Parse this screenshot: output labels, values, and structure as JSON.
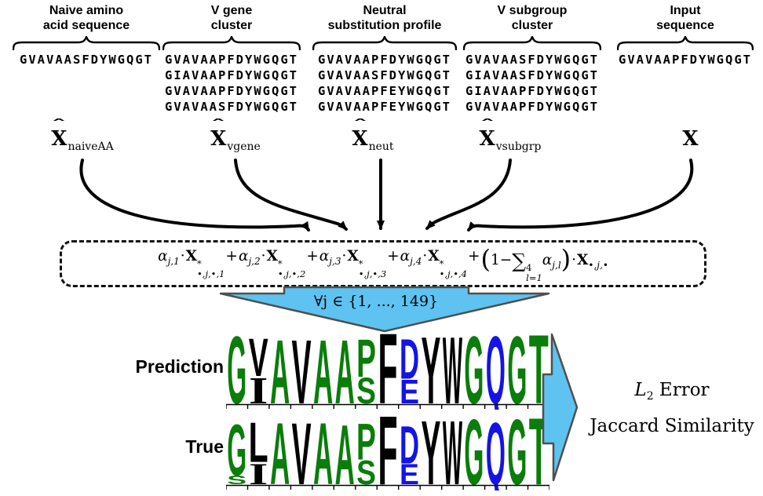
{
  "columns": [
    {
      "header_line1": "Naive amino",
      "header_line2": "acid sequence",
      "variable": {
        "symbol": "X",
        "hat": true,
        "subscript": "naiveAA"
      },
      "sequences": [
        "GVAVAASFDYWGQGT"
      ]
    },
    {
      "header_line1": "V gene",
      "header_line2": "cluster",
      "variable": {
        "symbol": "X",
        "hat": true,
        "subscript": "vgene"
      },
      "sequences": [
        "GVAVAAPFDYWGQGT",
        "GIAVAAPFDYWGQGT",
        "GVAVAAPFDYWGQGT",
        "GVAVAASFDYWGQGT"
      ]
    },
    {
      "header_line1": "Neutral",
      "header_line2": "substitution profile",
      "variable": {
        "symbol": "X",
        "hat": true,
        "subscript": "neut"
      },
      "sequences": [
        "GVAVAAPFDYWGQGT",
        "GVAVAASFDYWGQGT",
        "GVAVAAPFEYWGQGT",
        "GVAVAAPFEYWGQGT"
      ]
    },
    {
      "header_line1": "V subgroup",
      "header_line2": "cluster",
      "variable": {
        "symbol": "X",
        "hat": true,
        "subscript": "vsubgrp"
      },
      "sequences": [
        "GVAVAASFDYWGQGT",
        "GIAVAASFDYWGQGT",
        "GIAVAAPFDYWGQGT",
        "GVAVAAPFDYWGQGT"
      ]
    },
    {
      "header_line1": "Input",
      "header_line2": "sequence",
      "variable": {
        "symbol": "X",
        "hat": false,
        "subscript": ""
      },
      "sequences": [
        "GVAVAAPFDYWGQGT"
      ]
    }
  ],
  "symbols": {
    "hat": "ˆ"
  },
  "formula": {
    "alpha": "α",
    "dot": "·",
    "x": "X",
    "star": "*",
    "plus": "+",
    "terms": [
      {
        "a_sub": "j,1",
        "x_sub": "•,j,•,1"
      },
      {
        "a_sub": "j,2",
        "x_sub": "•,j,•,2"
      },
      {
        "a_sub": "j,3",
        "x_sub": "•,j,•,3"
      },
      {
        "a_sub": "j,4",
        "x_sub": "•,j,•,4"
      }
    ],
    "residual": {
      "open": "(",
      "one_minus": "1−",
      "sum": "∑",
      "sum_sup": "4",
      "sum_sub": "l=1",
      "a_sub": "j,l",
      "close": ")",
      "x_sub": "•,j,•"
    }
  },
  "banner": {
    "text": "∀j ∈ {1, ..., 149}"
  },
  "logos": {
    "prediction_label": "Prediction",
    "true_label": "True",
    "positions": 15,
    "prediction": [
      [
        {
          "c": "G",
          "k": "green",
          "h": 0.93
        }
      ],
      [
        {
          "c": "V",
          "k": "black",
          "h": 0.52
        },
        {
          "c": "I",
          "k": "black",
          "h": 0.37
        }
      ],
      [
        {
          "c": "A",
          "k": "green",
          "h": 0.88
        }
      ],
      [
        {
          "c": "V",
          "k": "black",
          "h": 0.88
        }
      ],
      [
        {
          "c": "A",
          "k": "green",
          "h": 0.88
        }
      ],
      [
        {
          "c": "A",
          "k": "green",
          "h": 0.88
        }
      ],
      [
        {
          "c": "P",
          "k": "green",
          "h": 0.52
        },
        {
          "c": "S",
          "k": "green",
          "h": 0.36
        }
      ],
      [
        {
          "c": "F",
          "k": "black",
          "h": 0.97
        }
      ],
      [
        {
          "c": "D",
          "k": "blue",
          "h": 0.55
        },
        {
          "c": "E",
          "k": "blue",
          "h": 0.33
        }
      ],
      [
        {
          "c": "Y",
          "k": "black",
          "h": 0.92
        }
      ],
      [
        {
          "c": "W",
          "k": "black",
          "h": 0.92
        }
      ],
      [
        {
          "c": "G",
          "k": "green",
          "h": 0.93
        }
      ],
      [
        {
          "c": "Q",
          "k": "blue",
          "h": 0.93
        }
      ],
      [
        {
          "c": "G",
          "k": "green",
          "h": 0.93
        }
      ],
      [
        {
          "c": "T",
          "k": "green",
          "h": 0.95
        }
      ]
    ],
    "true": [
      [
        {
          "c": "G",
          "k": "green",
          "h": 0.7
        },
        {
          "c": "S",
          "k": "green",
          "h": 0.12
        }
      ],
      [
        {
          "c": "L",
          "k": "black",
          "h": 0.55
        },
        {
          "c": "I",
          "k": "black",
          "h": 0.3
        }
      ],
      [
        {
          "c": "A",
          "k": "green",
          "h": 0.85
        }
      ],
      [
        {
          "c": "V",
          "k": "black",
          "h": 0.85
        }
      ],
      [
        {
          "c": "A",
          "k": "green",
          "h": 0.85
        }
      ],
      [
        {
          "c": "A",
          "k": "green",
          "h": 0.82
        }
      ],
      [
        {
          "c": "P",
          "k": "green",
          "h": 0.5
        },
        {
          "c": "S",
          "k": "green",
          "h": 0.33
        }
      ],
      [
        {
          "c": "F",
          "k": "black",
          "h": 0.95
        }
      ],
      [
        {
          "c": "D",
          "k": "blue",
          "h": 0.52
        },
        {
          "c": "E",
          "k": "blue",
          "h": 0.28
        }
      ],
      [
        {
          "c": "Y",
          "k": "black",
          "h": 0.88
        }
      ],
      [
        {
          "c": "W",
          "k": "black",
          "h": 0.88
        }
      ],
      [
        {
          "c": "G",
          "k": "green",
          "h": 0.9
        }
      ],
      [
        {
          "c": "Q",
          "k": "blue",
          "h": 0.85
        }
      ],
      [
        {
          "c": "G",
          "k": "green",
          "h": 0.9
        }
      ],
      [
        {
          "c": "T",
          "k": "green",
          "h": 0.92
        }
      ]
    ]
  },
  "output": {
    "l_symbol": "L",
    "l_sub": "2",
    "line1_rest": " Error",
    "line2": "Jaccard Similarity"
  },
  "colors": {
    "banner_fill": "#5ec3f0",
    "banner_stroke": "#4f4f4f",
    "logo_green": "#0a7d0a",
    "logo_blue": "#1414e6",
    "logo_black": "#000000",
    "arrow_black": "#000000"
  }
}
